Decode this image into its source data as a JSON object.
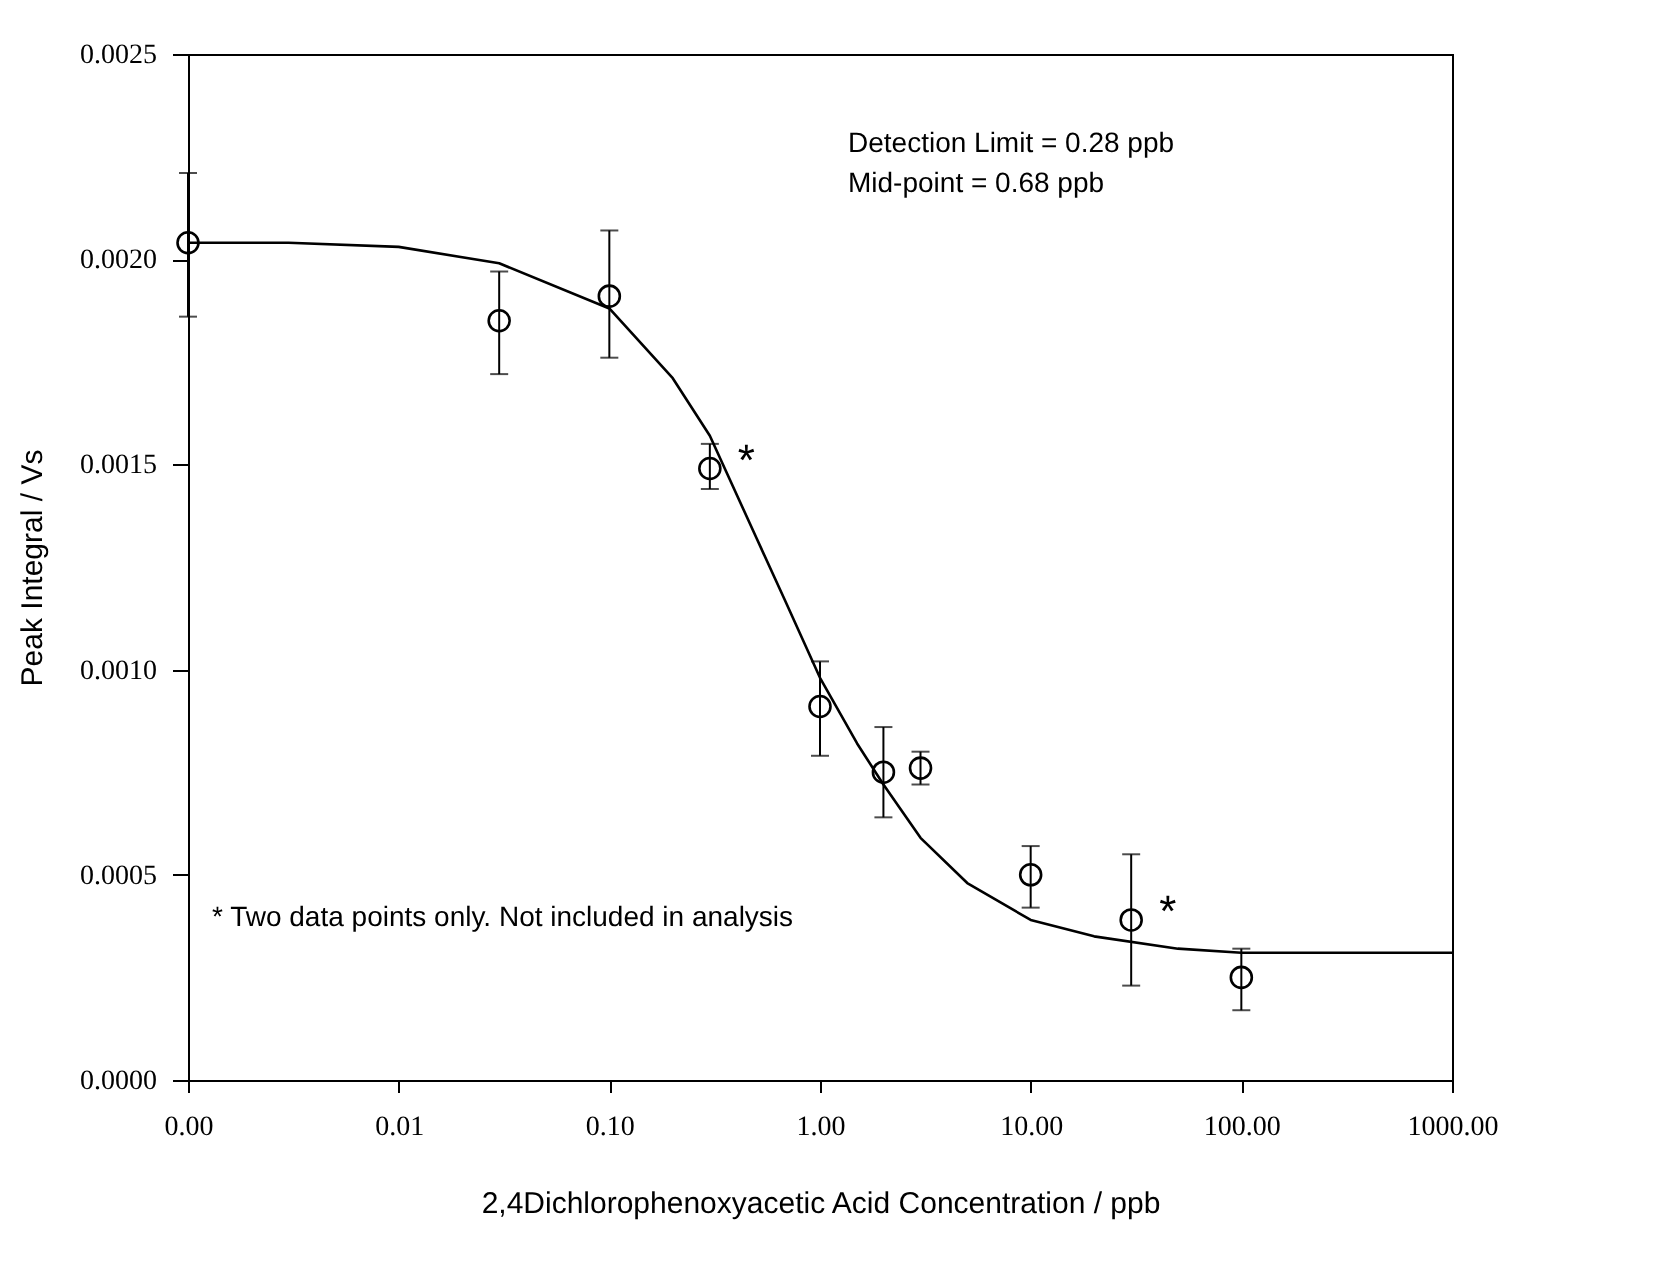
{
  "chart_data": {
    "type": "scatter",
    "xlabel": "2,4Dichlorophenoxyacetic Acid Concentration / ppb",
    "ylabel": "Peak Integral / Vs",
    "log": "x",
    "xlim": [
      0.001,
      1000
    ],
    "xticks": [
      {
        "value": 0.001,
        "label": "0.00"
      },
      {
        "value": 0.01,
        "label": "0.01"
      },
      {
        "value": 0.1,
        "label": "0.10"
      },
      {
        "value": 1,
        "label": "1.00"
      },
      {
        "value": 10,
        "label": "10.00"
      },
      {
        "value": 100,
        "label": "100.00"
      },
      {
        "value": 1000,
        "label": "1000.00"
      }
    ],
    "ylim": [
      0,
      0.0025
    ],
    "yticks": [
      {
        "value": 0,
        "label": "0.0000"
      },
      {
        "value": 0.0005,
        "label": "0.0005"
      },
      {
        "value": 0.001,
        "label": "0.0010"
      },
      {
        "value": 0.0015,
        "label": "0.0015"
      },
      {
        "value": 0.002,
        "label": "0.0020"
      },
      {
        "value": 0.0025,
        "label": "0.0025"
      }
    ],
    "grid": false,
    "legend": false,
    "series": [
      {
        "color": "#000000",
        "marker": "circle",
        "x": [
          0.001,
          0.03,
          0.1,
          0.3,
          1,
          2,
          3,
          10,
          30,
          100
        ],
        "values": [
          0.00204,
          0.00185,
          0.00191,
          0.00149,
          0.00091,
          0.00075,
          0.00076,
          0.0005,
          0.00039,
          0.00025
        ],
        "errors": [
          [
            0.00186,
            0.00221
          ],
          [
            0.00172,
            0.00197
          ],
          [
            0.00176,
            0.00207
          ],
          [
            0.00144,
            0.00155
          ],
          [
            0.00079,
            0.00102
          ],
          [
            0.00064,
            0.00086
          ],
          [
            0.00072,
            0.0008
          ],
          [
            0.00042,
            0.00057
          ],
          [
            0.00023,
            0.00055
          ],
          [
            0.00017,
            0.00032
          ]
        ]
      },
      {
        "type": "line",
        "color": "#000000",
        "line_style": "solid",
        "x": [
          0.001,
          0.003,
          0.01,
          0.03,
          0.1,
          0.2,
          0.3,
          0.5,
          0.68,
          1,
          1.5,
          2,
          3,
          5,
          10,
          20,
          50,
          100,
          300,
          1000
        ],
        "values": [
          0.00204,
          0.00204,
          0.00203,
          0.00199,
          0.00188,
          0.00171,
          0.00157,
          0.00132,
          0.00117,
          0.00098,
          0.00082,
          0.00072,
          0.00059,
          0.00048,
          0.00039,
          0.00035,
          0.00032,
          0.00031,
          0.00031,
          0.00031
        ]
      }
    ],
    "annotations": [
      "Detection Limit = 0.28 ppb",
      "Mid-point = 0.68 ppb",
      "* Two data points only. Not included in analysis",
      {
        "text": "*",
        "x": 0.3,
        "y": 0.00149
      },
      {
        "text": "*",
        "x": 30,
        "y": 0.00039
      }
    ]
  }
}
